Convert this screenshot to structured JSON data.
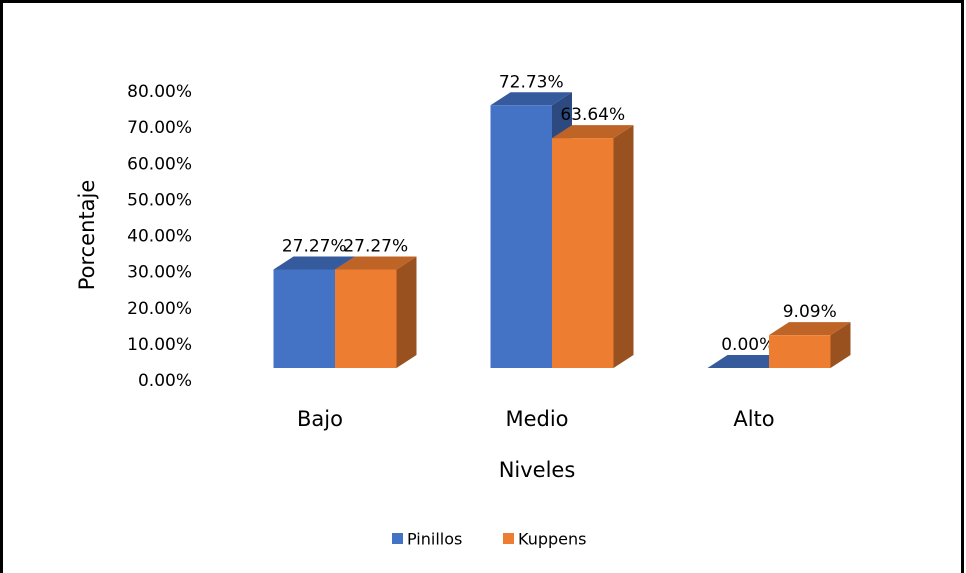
{
  "chart_data": {
    "type": "bar3d",
    "x_label": "Niveles",
    "y_label": "Porcentaje",
    "categories": [
      "Bajo",
      "Medio",
      "Alto"
    ],
    "series": [
      {
        "name": "Pinillos",
        "color": "#4472c4",
        "values": [
          27.27,
          72.73,
          0
        ],
        "value_labels": [
          "27.27%",
          "72.73%",
          "0.00%"
        ]
      },
      {
        "name": "Kuppens",
        "color": "#ed7d31",
        "values": [
          27.27,
          63.64,
          9.09
        ],
        "value_labels": [
          "27.27%",
          "63.64%",
          "9.09%"
        ]
      }
    ],
    "ylim": [
      0,
      80
    ],
    "yticks": [
      {
        "value": 0,
        "label": "0.00%"
      },
      {
        "value": 10,
        "label": "10.00%"
      },
      {
        "value": 20,
        "label": "20.00%"
      },
      {
        "value": 30,
        "label": "30.00%"
      },
      {
        "value": 40,
        "label": "40.00%"
      },
      {
        "value": 50,
        "label": "50.00%"
      },
      {
        "value": 60,
        "label": "60.00%"
      },
      {
        "value": 70,
        "label": "70.00%"
      },
      {
        "value": 80,
        "label": "80.00%"
      }
    ],
    "legend": "bottom"
  }
}
